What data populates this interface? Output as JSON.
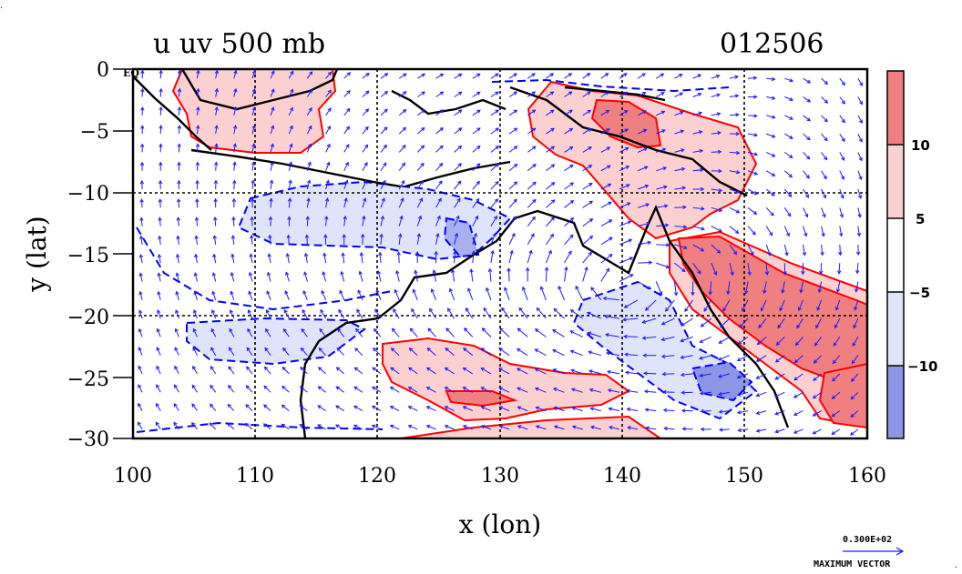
{
  "title_left": "u uv 500 mb",
  "title_right": "012506",
  "eq_label": "EQ",
  "map": {
    "xlabel": "x (lon)",
    "ylabel": "y (lat)",
    "x_ticks": [
      "100",
      "110",
      "120",
      "130",
      "140",
      "150",
      "160"
    ],
    "y_ticks": [
      "0",
      "−5",
      "−10",
      "−15",
      "−20",
      "−25",
      "−30"
    ],
    "xlim": [
      100,
      160
    ],
    "ylim": [
      -30,
      0
    ],
    "grid_lon": [
      110,
      120,
      130,
      140,
      150
    ],
    "grid_lat": [
      -10,
      -20
    ]
  },
  "colorbar": {
    "labels": [
      "10",
      "5",
      "−5",
      "−10"
    ],
    "colors": [
      "#f08080",
      "#fbd0d0",
      "#ffffff",
      "#e0e4fa",
      "#8c96e6"
    ]
  },
  "vector_key": {
    "value": "0.300E+02",
    "label": "MAXIMUM VECTOR"
  },
  "colors": {
    "positive_contour": "#ff0000",
    "negative_contour": "#0000ff",
    "vector": "#1a1aff"
  }
}
